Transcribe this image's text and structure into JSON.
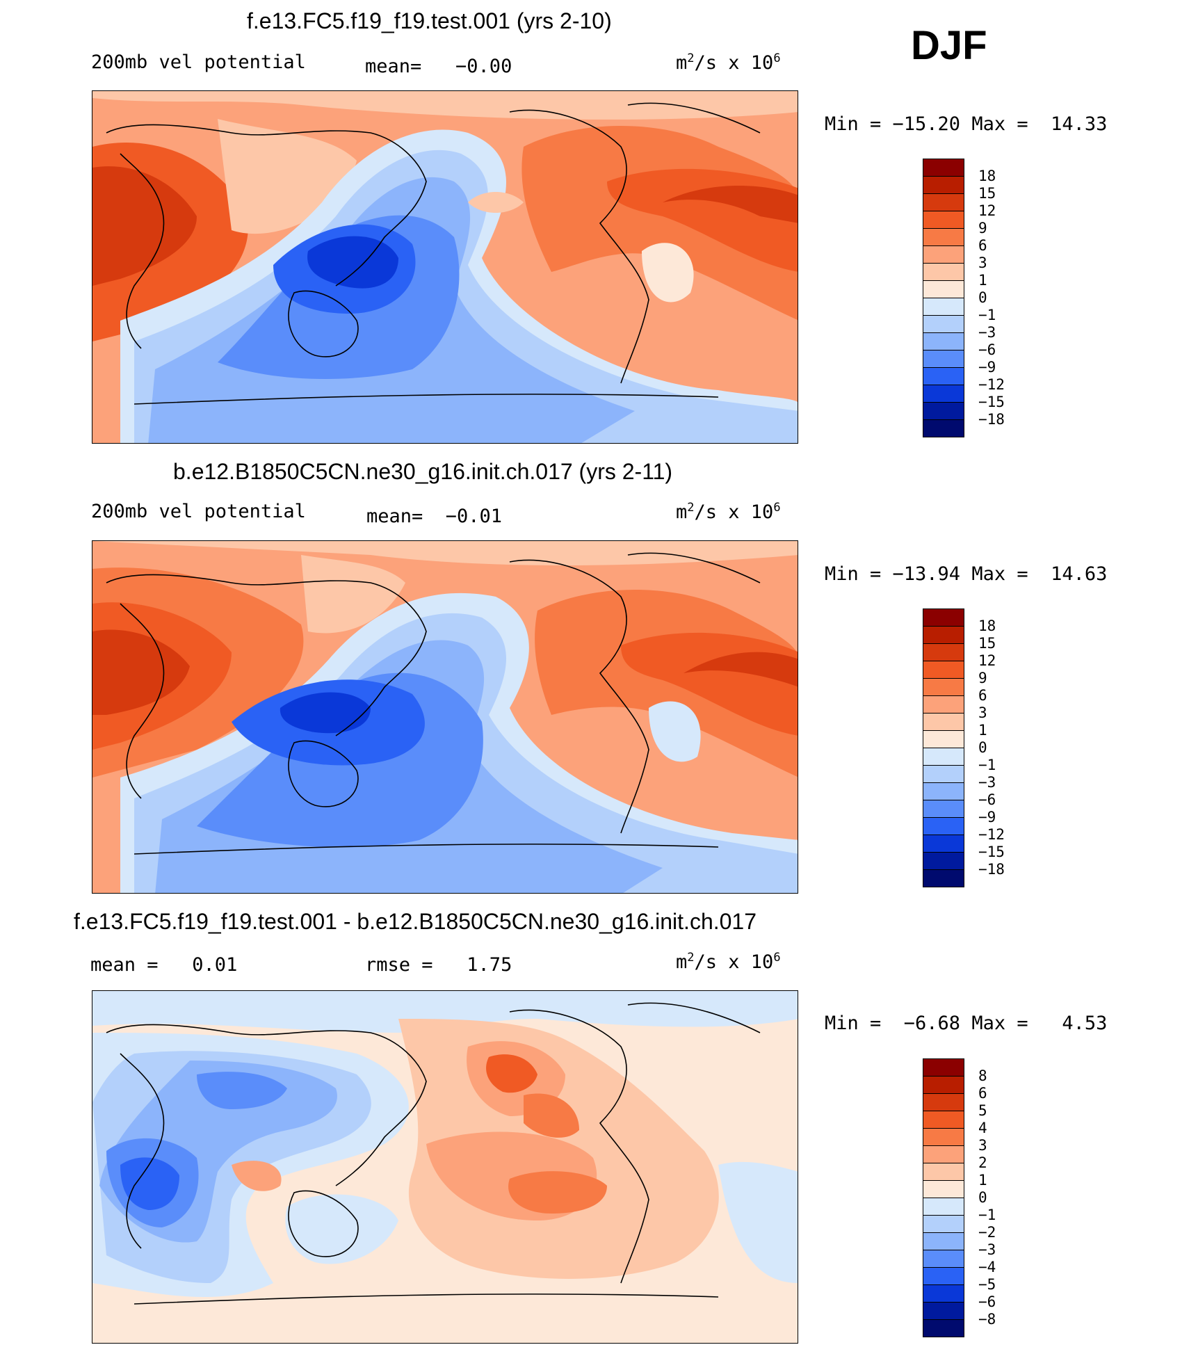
{
  "season": "DJF",
  "panels": [
    {
      "id": "top",
      "title": "f.e13.FC5.f19_f19.test.001 (yrs 2-10)",
      "field_label": "200mb vel potential",
      "stat_text": "mean=   −0.00",
      "units_prefix": "m",
      "units_mid": "/s x 10",
      "units_exp2": "2",
      "units_exp6": "6",
      "minmax_text": "Min = −15.20 Max =  14.33",
      "colorbar_ticks": [
        "18",
        "15",
        "12",
        "9",
        "6",
        "3",
        "1",
        "0",
        "−1",
        "−3",
        "−6",
        "−9",
        "−12",
        "−15",
        "−18"
      ]
    },
    {
      "id": "middle",
      "title": "b.e12.B1850C5CN.ne30_g16.init.ch.017 (yrs 2-11)",
      "field_label": "200mb vel potential",
      "stat_text": "mean=  −0.01",
      "units_prefix": "m",
      "units_mid": "/s x 10",
      "units_exp2": "2",
      "units_exp6": "6",
      "minmax_text": "Min = −13.94 Max =  14.63",
      "colorbar_ticks": [
        "18",
        "15",
        "12",
        "9",
        "6",
        "3",
        "1",
        "0",
        "−1",
        "−3",
        "−6",
        "−9",
        "−12",
        "−15",
        "−18"
      ]
    },
    {
      "id": "bottom",
      "title": "f.e13.FC5.f19_f19.test.001 - b.e12.B1850C5CN.ne30_g16.init.ch.017",
      "field_label": "mean =   0.01",
      "stat_text": "rmse =   1.75",
      "units_prefix": "m",
      "units_mid": "/s x 10",
      "units_exp2": "2",
      "units_exp6": "6",
      "minmax_text": "Min =  −6.68 Max =   4.53",
      "colorbar_ticks": [
        "8",
        "6",
        "5",
        "4",
        "3",
        "2",
        "1",
        "0",
        "−1",
        "−2",
        "−3",
        "−4",
        "−5",
        "−6",
        "−8"
      ]
    }
  ],
  "colors": {
    "full_scale": [
      "#8b0000",
      "#b81e00",
      "#d63a0e",
      "#f05a24",
      "#f77a45",
      "#fca27a",
      "#fdc7a8",
      "#fde8d8",
      "#d6e8fb",
      "#b3d0fb",
      "#8cb4fb",
      "#5a8dfa",
      "#2a62f5",
      "#0a38d8",
      "#001a9e",
      "#000a6e"
    ],
    "land": "none",
    "coast": "#000000"
  }
}
